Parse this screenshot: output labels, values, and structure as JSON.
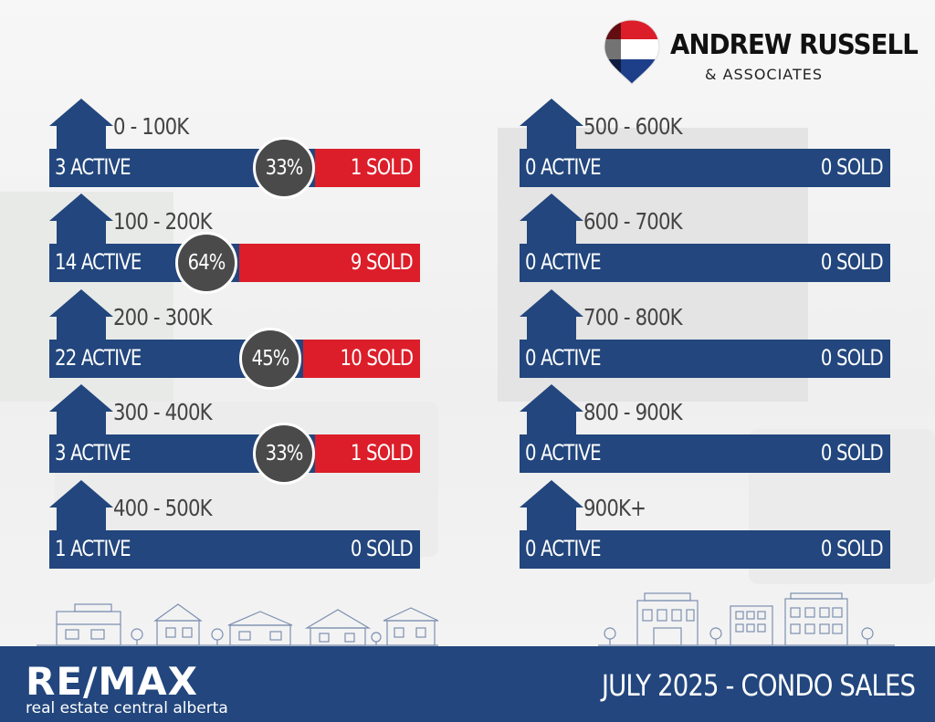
{
  "brand": {
    "name": "ANDREW RUSSELL",
    "sub": "& ASSOCIATES",
    "colors": {
      "navy": "#22467d",
      "red": "#dc1e2a",
      "badge": "#4a4a4a"
    }
  },
  "rows_left": [
    {
      "range": "0 - 100K",
      "active": "3 ACTIVE",
      "sold": "1 SOLD",
      "percent": "33%",
      "sold_fraction": 0.25
    },
    {
      "range": "100 - 200K",
      "active": "14 ACTIVE",
      "sold": "9 SOLD",
      "percent": "64%",
      "sold_fraction": 0.39
    },
    {
      "range": "200 - 300K",
      "active": "22 ACTIVE",
      "sold": "10 SOLD",
      "percent": "45%",
      "sold_fraction": 0.31
    },
    {
      "range": "300 - 400K",
      "active": "3 ACTIVE",
      "sold": "1 SOLD",
      "percent": "33%",
      "sold_fraction": 0.25
    },
    {
      "range": "400 - 500K",
      "active": "1 ACTIVE",
      "sold": "0 SOLD",
      "percent": "",
      "sold_fraction": 0
    }
  ],
  "rows_right": [
    {
      "range": "500 - 600K",
      "active": "0 ACTIVE",
      "sold": "0 SOLD"
    },
    {
      "range": "600 - 700K",
      "active": "0 ACTIVE",
      "sold": "0 SOLD"
    },
    {
      "range": "700 - 800K",
      "active": "0 ACTIVE",
      "sold": "0 SOLD"
    },
    {
      "range": "800 - 900K",
      "active": "0 ACTIVE",
      "sold": "0 SOLD"
    },
    {
      "range": "900K+",
      "active": "0 ACTIVE",
      "sold": "0 SOLD"
    }
  ],
  "footer": {
    "logo": "RE/MAX",
    "logo_sub": "real estate central alberta",
    "title": "JULY 2025 -  CONDO SALES"
  },
  "icons": {
    "house": "house-icon",
    "balloon": "hot-air-balloon-icon",
    "skyline": "neighborhood-skyline-icon"
  }
}
